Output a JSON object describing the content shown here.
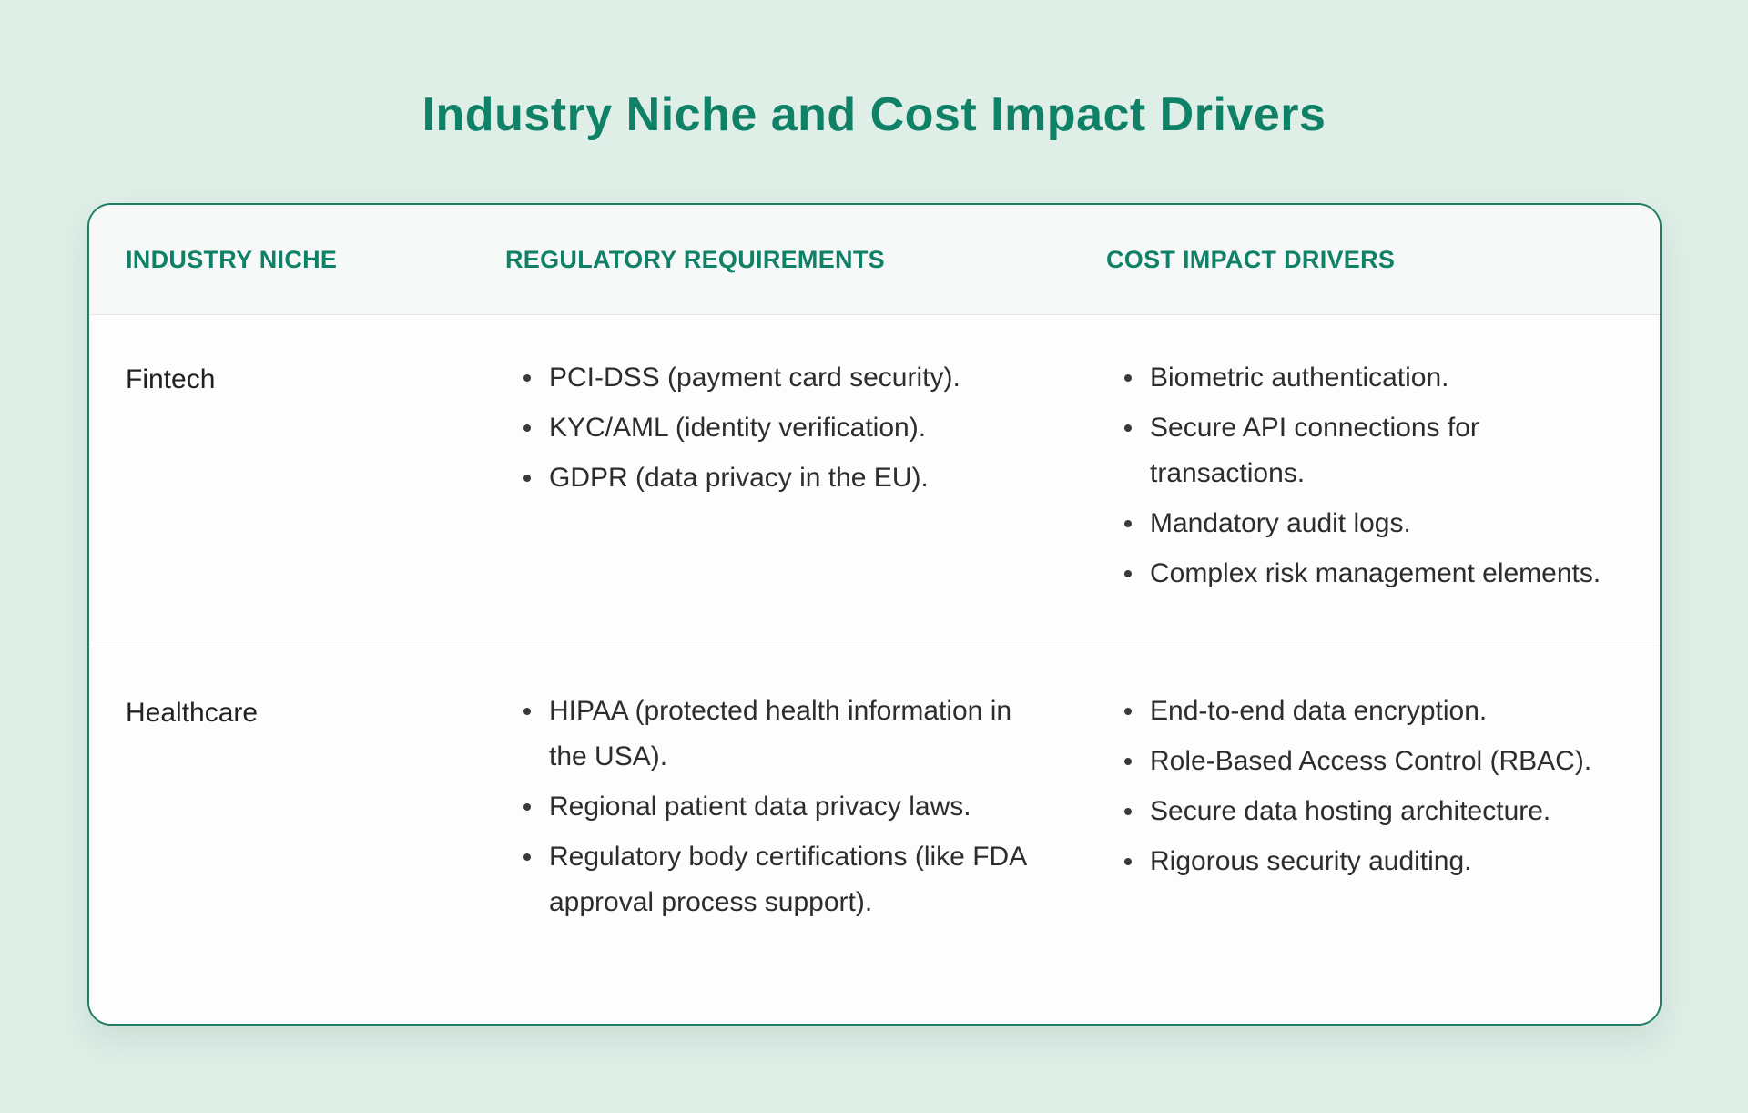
{
  "title": "Industry Niche and Cost Impact Drivers",
  "colors": {
    "background": "#dfeee7",
    "accent": "#0e8167",
    "card_border": "#1e7d67",
    "header_background": "#f7f8f8",
    "card_background": "#fdfdfd",
    "body_text": "#2d2d2d"
  },
  "table": {
    "columns": [
      "INDUSTRY NICHE",
      "REGULATORY REQUIREMENTS",
      "COST IMPACT DRIVERS"
    ],
    "rows": [
      {
        "niche": "Fintech",
        "regulatory_requirements": [
          "PCI-DSS (payment card security).",
          "KYC/AML (identity verification).",
          "GDPR (data privacy in the EU)."
        ],
        "cost_impact_drivers": [
          "Biometric authentication.",
          "Secure API connections for transactions.",
          "Mandatory audit logs.",
          "Complex risk management elements."
        ]
      },
      {
        "niche": "Healthcare",
        "regulatory_requirements": [
          "HIPAA (protected health information in the USA).",
          "Regional patient data privacy laws.",
          "Regulatory body certifications (like FDA approval process support)."
        ],
        "cost_impact_drivers": [
          "End-to-end data encryption.",
          "Role-Based Access Control (RBAC).",
          "Secure data hosting architecture.",
          "Rigorous security auditing."
        ]
      }
    ]
  },
  "chart_data": {
    "type": "table",
    "title": "Industry Niche and Cost Impact Drivers",
    "columns": [
      "INDUSTRY NICHE",
      "REGULATORY REQUIREMENTS",
      "COST IMPACT DRIVERS"
    ],
    "rows": [
      [
        "Fintech",
        "PCI-DSS (payment card security). KYC/AML (identity verification). GDPR (data privacy in the EU).",
        "Biometric authentication. Secure API connections for transactions. Mandatory audit logs. Complex risk management elements."
      ],
      [
        "Healthcare",
        "HIPAA (protected health information in the USA). Regional patient data privacy laws. Regulatory body certifications (like FDA approval process support).",
        "End-to-end data encryption. Role-Based Access Control (RBAC). Secure data hosting architecture. Rigorous security auditing."
      ]
    ],
    "legend": "none",
    "grid": "row dividers only"
  }
}
